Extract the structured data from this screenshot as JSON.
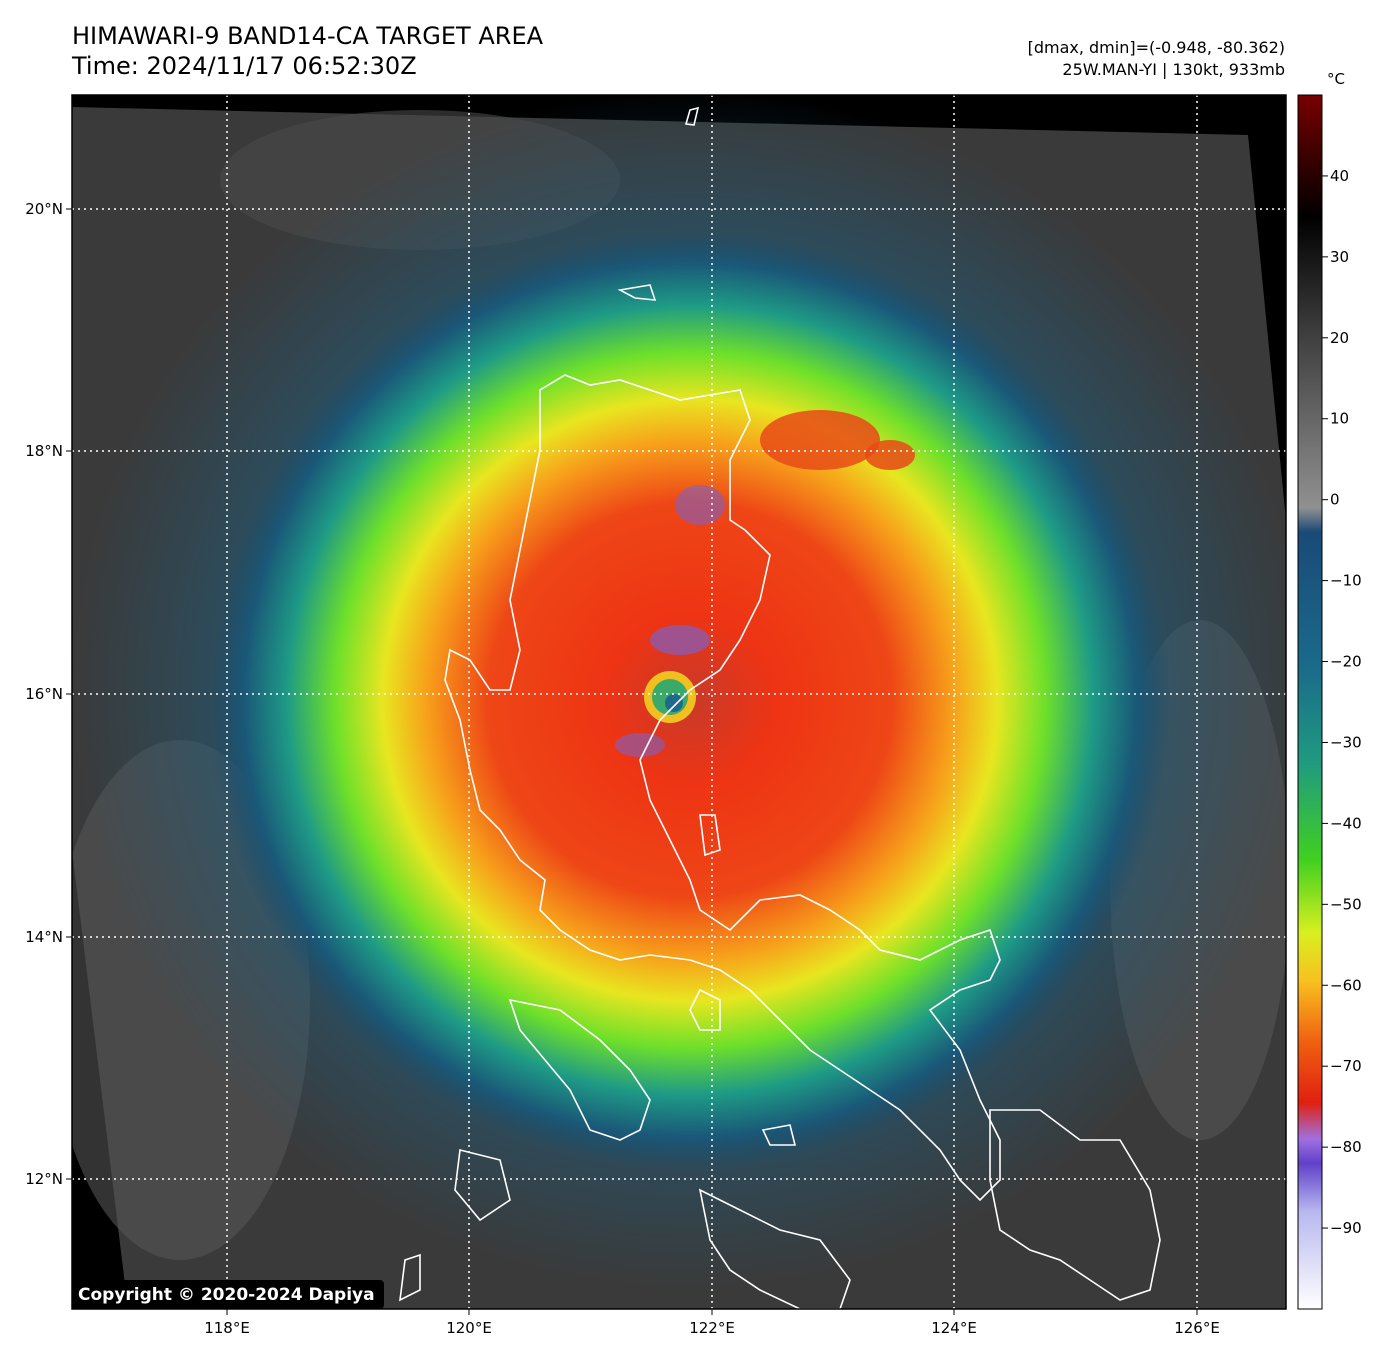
{
  "header": {
    "title_line1": "HIMAWARI-9 BAND14-CA TARGET AREA",
    "title_line2": "Time: 2024/11/17 06:52:30Z",
    "info_line1": "[dmax, dmin]=(-0.948, -80.362)",
    "info_line2": "25W.MAN-YI | 130kt, 933mb"
  },
  "map": {
    "lon_ticks": [
      "118°E",
      "120°E",
      "122°E",
      "124°E",
      "126°E"
    ],
    "lat_ticks": [
      "20°N",
      "18°N",
      "16°N",
      "14°N",
      "12°N"
    ],
    "copyright": "Copyright © 2020-2024 Dapiya"
  },
  "colorbar": {
    "unit": "°C",
    "ticks": [
      "40",
      "30",
      "20",
      "10",
      "0",
      "−10",
      "−20",
      "−30",
      "−40",
      "−50",
      "−60",
      "−70",
      "−80",
      "−90"
    ],
    "range": [
      -100,
      50
    ]
  },
  "colors": {
    "eye": "#3aa96a",
    "cold_core": "#e63d14",
    "warm_sea": "#3b3b3b",
    "coastline": "#ffffff"
  }
}
